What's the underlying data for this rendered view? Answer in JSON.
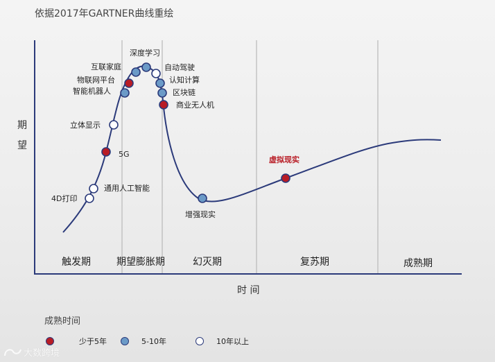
{
  "title": "依据2017年GARTNER曲线重绘",
  "y_axis_label": [
    "期",
    "望"
  ],
  "x_axis_label": "时 间",
  "phases": [
    "触发期",
    "期望膨胀期",
    "幻灭期",
    "复苏期",
    "成熟期"
  ],
  "colors": {
    "under_5y": "#b81c25",
    "5_10y": "#6b9ac7",
    "over_10y": "#ffffff",
    "curve": "#2b3a7a",
    "divider": "#b8b8b8",
    "highlight_text": "#b81c25"
  },
  "technologies": [
    {
      "name": "4D打印",
      "maturity": "10年以上"
    },
    {
      "name": "通用人工智能",
      "maturity": "10年以上"
    },
    {
      "name": "5G",
      "maturity": "少于5年"
    },
    {
      "name": "立体显示",
      "maturity": "10年以上"
    },
    {
      "name": "智能机器人",
      "maturity": "5-10年"
    },
    {
      "name": "物联网平台",
      "maturity": "少于5年"
    },
    {
      "name": "互联家庭",
      "maturity": "5-10年"
    },
    {
      "name": "深度学习",
      "maturity": "5-10年"
    },
    {
      "name": "自动驾驶",
      "maturity": "10年以上"
    },
    {
      "name": "认知计算",
      "maturity": "5-10年"
    },
    {
      "name": "区块链",
      "maturity": "5-10年"
    },
    {
      "name": "商业无人机",
      "maturity": "少于5年"
    },
    {
      "name": "增强现实",
      "maturity": "5-10年"
    },
    {
      "name": "虚拟现实",
      "maturity": "少于5年"
    }
  ],
  "legend": {
    "title": "成熟时间",
    "items": [
      {
        "label": "少于5年",
        "color": "#b81c25"
      },
      {
        "label": "5-10年",
        "color": "#6b9ac7"
      },
      {
        "label": "10年以上",
        "color": "#ffffff"
      }
    ]
  },
  "watermark": "大数跨境"
}
